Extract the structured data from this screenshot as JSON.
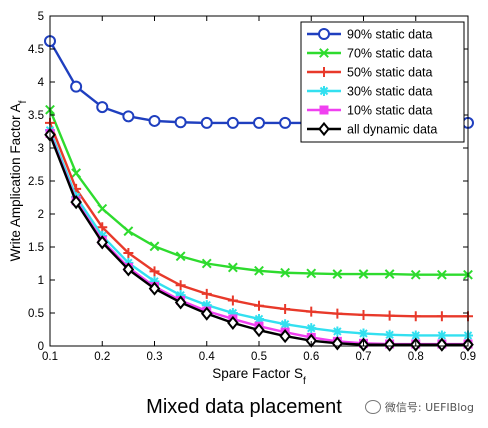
{
  "caption": "Mixed data placement",
  "watermark": "微信号: UEFIBlog",
  "chart_data": {
    "type": "line",
    "title": "",
    "xlabel": "Spare Factor S",
    "xlabel_sub": "f",
    "ylabel": "Write Amplication Factor A",
    "ylabel_sub": "f",
    "xlim": [
      0.1,
      0.9
    ],
    "ylim": [
      0,
      5
    ],
    "xticks": [
      "0.1",
      "0.2",
      "0.3",
      "0.4",
      "0.5",
      "0.6",
      "0.7",
      "0.8",
      "0.9"
    ],
    "yticks": [
      "0",
      "0.5",
      "1",
      "1.5",
      "2",
      "2.5",
      "3",
      "3.5",
      "4",
      "4.5",
      "5"
    ],
    "grid": false,
    "legend_position": "top-right",
    "x": [
      0.1,
      0.15,
      0.2,
      0.25,
      0.3,
      0.35,
      0.4,
      0.45,
      0.5,
      0.55,
      0.6,
      0.65,
      0.7,
      0.75,
      0.8,
      0.85,
      0.9
    ],
    "series": [
      {
        "name": "90% static data",
        "color": "#1f3fbf",
        "marker": "circle",
        "values": [
          4.62,
          3.93,
          3.62,
          3.48,
          3.41,
          3.39,
          3.38,
          3.38,
          3.38,
          3.38,
          3.38,
          3.38,
          3.38,
          3.38,
          3.38,
          3.38,
          3.38
        ]
      },
      {
        "name": "70% static data",
        "color": "#2edb2e",
        "marker": "x",
        "values": [
          3.58,
          2.62,
          2.08,
          1.74,
          1.51,
          1.36,
          1.25,
          1.19,
          1.14,
          1.11,
          1.1,
          1.09,
          1.09,
          1.09,
          1.08,
          1.08,
          1.08
        ]
      },
      {
        "name": "50% static data",
        "color": "#e8392a",
        "marker": "plus",
        "values": [
          3.38,
          2.38,
          1.8,
          1.41,
          1.13,
          0.92,
          0.79,
          0.69,
          0.61,
          0.56,
          0.52,
          0.49,
          0.47,
          0.46,
          0.45,
          0.45,
          0.45
        ]
      },
      {
        "name": "30% static data",
        "color": "#33e0f0",
        "marker": "star",
        "values": [
          3.27,
          2.26,
          1.67,
          1.26,
          0.98,
          0.77,
          0.62,
          0.5,
          0.41,
          0.33,
          0.27,
          0.22,
          0.19,
          0.17,
          0.16,
          0.16,
          0.16
        ]
      },
      {
        "name": "10% static data",
        "color": "#f040f0",
        "marker": "square",
        "values": [
          3.22,
          2.2,
          1.6,
          1.19,
          0.9,
          0.69,
          0.53,
          0.41,
          0.3,
          0.21,
          0.13,
          0.07,
          0.04,
          0.03,
          0.03,
          0.03,
          0.03
        ]
      },
      {
        "name": "all dynamic data",
        "color": "#000000",
        "marker": "diamond",
        "values": [
          3.2,
          2.18,
          1.57,
          1.16,
          0.87,
          0.66,
          0.49,
          0.35,
          0.24,
          0.15,
          0.08,
          0.04,
          0.02,
          0.02,
          0.02,
          0.02,
          0.02
        ]
      }
    ]
  }
}
